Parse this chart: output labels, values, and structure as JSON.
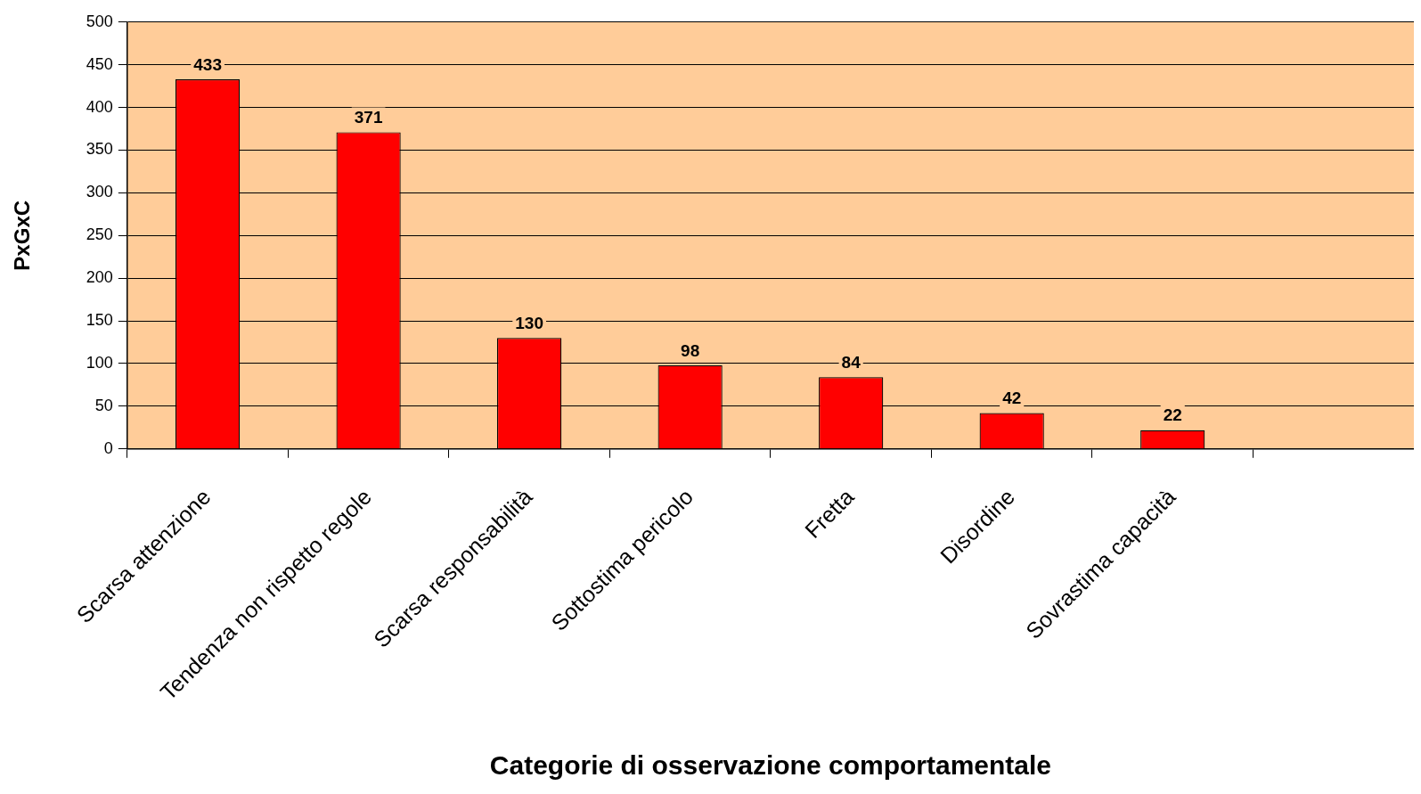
{
  "chart_data": {
    "type": "bar",
    "xlabel": "Categorie di osservazione comportamentale",
    "ylabel": "PxGxC",
    "categories": [
      "Scarsa attenzione",
      "Tendenza non rispetto regole",
      "Scarsa responsabilità",
      "Sottostima pericolo",
      "Fretta",
      "Disordine",
      "Sovrastima capacità",
      null
    ],
    "values": [
      433,
      371,
      130,
      98,
      84,
      42,
      22,
      null
    ],
    "color": "#ff0000",
    "ylim": [
      0,
      500
    ],
    "yticks": [
      0,
      50,
      100,
      150,
      200,
      250,
      300,
      350,
      400,
      450,
      500
    ],
    "grid": "y",
    "data_labels": true,
    "legend": false
  }
}
